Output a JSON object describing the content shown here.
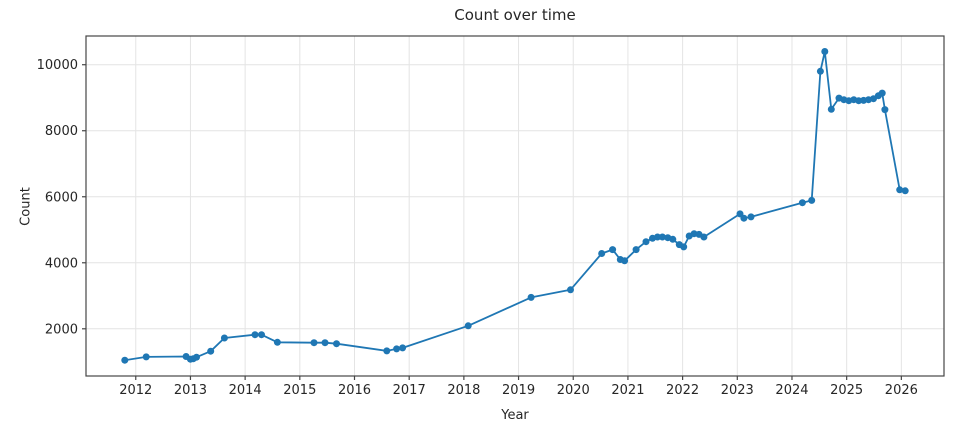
{
  "figure": {
    "title": "Count over time",
    "xlabel": "Year",
    "ylabel": "Count"
  },
  "chart_data": {
    "type": "line",
    "title": "Count over time",
    "xlabel": "Year",
    "ylabel": "Count",
    "legend": null,
    "grid": true,
    "line_color": "#1f77b4",
    "marker": "circle",
    "grid_color": "#e4e4e4",
    "spine_color": "#454545",
    "text_color": "#262626",
    "background_color": "#ffffff",
    "xlim": [
      2011.09,
      2026.78
    ],
    "ylim": [
      570,
      10870
    ],
    "x_ticks": [
      2012,
      2013,
      2014,
      2015,
      2016,
      2017,
      2018,
      2019,
      2020,
      2021,
      2022,
      2023,
      2024,
      2025,
      2026
    ],
    "y_ticks": [
      2000,
      4000,
      6000,
      8000,
      10000
    ],
    "series": [
      {
        "name": "Count",
        "points": [
          [
            2011.8,
            1050
          ],
          [
            2012.19,
            1150
          ],
          [
            2012.92,
            1160
          ],
          [
            2013.0,
            1080
          ],
          [
            2013.05,
            1090
          ],
          [
            2013.11,
            1140
          ],
          [
            2013.37,
            1320
          ],
          [
            2013.62,
            1720
          ],
          [
            2014.18,
            1820
          ],
          [
            2014.3,
            1820
          ],
          [
            2014.59,
            1590
          ],
          [
            2015.26,
            1580
          ],
          [
            2015.46,
            1580
          ],
          [
            2015.67,
            1550
          ],
          [
            2016.59,
            1330
          ],
          [
            2016.77,
            1390
          ],
          [
            2016.88,
            1420
          ],
          [
            2018.08,
            2090
          ],
          [
            2019.23,
            2950
          ],
          [
            2019.95,
            3180
          ],
          [
            2020.52,
            4280
          ],
          [
            2020.72,
            4400
          ],
          [
            2020.86,
            4100
          ],
          [
            2020.94,
            4060
          ],
          [
            2021.15,
            4400
          ],
          [
            2021.33,
            4640
          ],
          [
            2021.45,
            4740
          ],
          [
            2021.54,
            4780
          ],
          [
            2021.63,
            4780
          ],
          [
            2021.73,
            4760
          ],
          [
            2021.82,
            4710
          ],
          [
            2021.94,
            4550
          ],
          [
            2022.02,
            4480
          ],
          [
            2022.12,
            4810
          ],
          [
            2022.21,
            4880
          ],
          [
            2022.3,
            4860
          ],
          [
            2022.39,
            4780
          ],
          [
            2023.05,
            5480
          ],
          [
            2023.12,
            5350
          ],
          [
            2023.25,
            5390
          ],
          [
            2024.19,
            5820
          ],
          [
            2024.36,
            5890
          ],
          [
            2024.52,
            9800
          ],
          [
            2024.6,
            10400
          ],
          [
            2024.72,
            8650
          ],
          [
            2024.86,
            8990
          ],
          [
            2024.95,
            8940
          ],
          [
            2025.04,
            8910
          ],
          [
            2025.13,
            8940
          ],
          [
            2025.22,
            8910
          ],
          [
            2025.31,
            8920
          ],
          [
            2025.4,
            8940
          ],
          [
            2025.49,
            8970
          ],
          [
            2025.58,
            9060
          ],
          [
            2025.65,
            9140
          ],
          [
            2025.7,
            8640
          ],
          [
            2025.97,
            6210
          ],
          [
            2026.07,
            6180
          ]
        ]
      }
    ]
  }
}
